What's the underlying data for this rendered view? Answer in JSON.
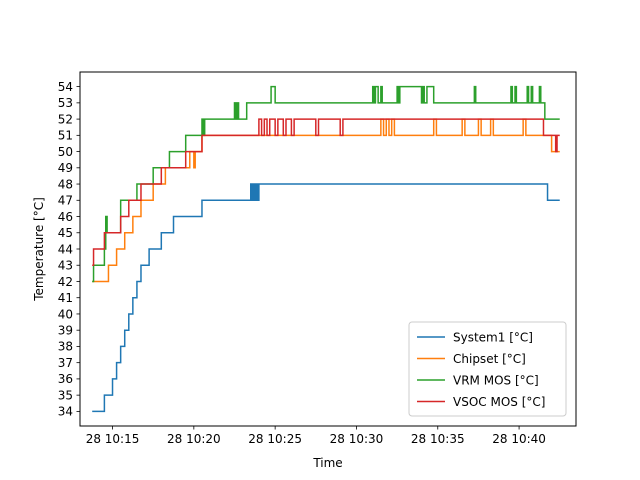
{
  "chart_data": {
    "type": "line",
    "title": "",
    "xlabel": "Time",
    "ylabel": "Temperature [°C]",
    "xlim": [
      "28 10:13:00",
      "28 10:43:30"
    ],
    "ylim": [
      33.1,
      54.9
    ],
    "grid": false,
    "legend": "lower-right",
    "x_ticks": [
      "28 10:15",
      "28 10:20",
      "28 10:25",
      "28 10:30",
      "28 10:35",
      "28 10:40"
    ],
    "x_tick_minutes": [
      15,
      20,
      25,
      30,
      35,
      40
    ],
    "y_ticks": [
      34,
      35,
      36,
      37,
      38,
      39,
      40,
      41,
      42,
      43,
      44,
      45,
      46,
      47,
      48,
      49,
      50,
      51,
      52,
      53,
      54
    ],
    "series": [
      {
        "name": "System1 [°C]",
        "color": "#1f77b4",
        "steps": [
          [
            "10:13:45",
            34
          ],
          [
            "10:14:30",
            35
          ],
          [
            "10:15:00",
            36
          ],
          [
            "10:15:15",
            37
          ],
          [
            "10:15:30",
            38
          ],
          [
            "10:15:45",
            39
          ],
          [
            "10:16:00",
            40
          ],
          [
            "10:16:15",
            41
          ],
          [
            "10:16:30",
            42
          ],
          [
            "10:16:45",
            43
          ],
          [
            "10:17:15",
            44
          ],
          [
            "10:18:00",
            45
          ],
          [
            "10:18:45",
            46
          ],
          [
            "10:20:30",
            47
          ],
          [
            "10:23:30",
            48
          ],
          [
            "10:23:35",
            47
          ],
          [
            "10:23:40",
            48
          ],
          [
            "10:23:45",
            47
          ],
          [
            "10:23:50",
            48
          ],
          [
            "10:23:55",
            47
          ],
          [
            "10:24:00",
            48
          ],
          [
            "10:41:45",
            47
          ],
          [
            "10:42:30",
            47
          ]
        ]
      },
      {
        "name": "Chipset [°C]",
        "color": "#ff7f0e",
        "steps": [
          [
            "10:13:45",
            42
          ],
          [
            "10:14:00",
            42
          ],
          [
            "10:14:45",
            43
          ],
          [
            "10:15:15",
            44
          ],
          [
            "10:15:45",
            45
          ],
          [
            "10:16:15",
            46
          ],
          [
            "10:16:45",
            47
          ],
          [
            "10:17:30",
            48
          ],
          [
            "10:18:15",
            49
          ],
          [
            "10:19:45",
            50
          ],
          [
            "10:20:00",
            49
          ],
          [
            "10:20:05",
            50
          ],
          [
            "10:20:30",
            51
          ],
          [
            "10:31:30",
            52
          ],
          [
            "10:31:40",
            51
          ],
          [
            "10:31:50",
            52
          ],
          [
            "10:32:00",
            51
          ],
          [
            "10:32:10",
            52
          ],
          [
            "10:32:20",
            51
          ],
          [
            "10:34:45",
            52
          ],
          [
            "10:34:55",
            51
          ],
          [
            "10:36:30",
            52
          ],
          [
            "10:36:40",
            51
          ],
          [
            "10:37:30",
            52
          ],
          [
            "10:37:40",
            51
          ],
          [
            "10:38:15",
            52
          ],
          [
            "10:38:25",
            51
          ],
          [
            "10:40:15",
            52
          ],
          [
            "10:40:25",
            51
          ],
          [
            "10:42:00",
            50
          ],
          [
            "10:42:30",
            50
          ]
        ]
      },
      {
        "name": "VRM MOS [°C]",
        "color": "#2ca02c",
        "steps": [
          [
            "10:13:45",
            42
          ],
          [
            "10:13:50",
            43
          ],
          [
            "10:14:30",
            44
          ],
          [
            "10:14:35",
            46
          ],
          [
            "10:14:40",
            45
          ],
          [
            "10:15:30",
            47
          ],
          [
            "10:16:30",
            48
          ],
          [
            "10:17:30",
            49
          ],
          [
            "10:18:30",
            50
          ],
          [
            "10:19:30",
            51
          ],
          [
            "10:20:30",
            52
          ],
          [
            "10:20:35",
            51
          ],
          [
            "10:20:40",
            52
          ],
          [
            "10:22:30",
            53
          ],
          [
            "10:22:35",
            52
          ],
          [
            "10:22:40",
            53
          ],
          [
            "10:22:45",
            52
          ],
          [
            "10:23:15",
            53
          ],
          [
            "10:24:45",
            54
          ],
          [
            "10:25:00",
            53
          ],
          [
            "10:31:00",
            54
          ],
          [
            "10:31:05",
            53
          ],
          [
            "10:31:10",
            54
          ],
          [
            "10:31:20",
            53
          ],
          [
            "10:31:30",
            54
          ],
          [
            "10:31:35",
            53
          ],
          [
            "10:32:30",
            54
          ],
          [
            "10:32:35",
            53
          ],
          [
            "10:32:40",
            54
          ],
          [
            "10:34:00",
            53
          ],
          [
            "10:34:05",
            54
          ],
          [
            "10:34:10",
            53
          ],
          [
            "10:34:20",
            54
          ],
          [
            "10:34:45",
            53
          ],
          [
            "10:37:15",
            54
          ],
          [
            "10:37:20",
            53
          ],
          [
            "10:39:30",
            54
          ],
          [
            "10:39:35",
            53
          ],
          [
            "10:39:45",
            54
          ],
          [
            "10:39:50",
            53
          ],
          [
            "10:40:30",
            54
          ],
          [
            "10:40:35",
            53
          ],
          [
            "10:40:45",
            54
          ],
          [
            "10:40:50",
            53
          ],
          [
            "10:41:15",
            54
          ],
          [
            "10:41:20",
            53
          ],
          [
            "10:41:35",
            52
          ],
          [
            "10:42:30",
            52
          ]
        ]
      },
      {
        "name": "VSOC MOS [°C]",
        "color": "#d62728",
        "steps": [
          [
            "10:13:45",
            43
          ],
          [
            "10:13:50",
            44
          ],
          [
            "10:14:30",
            45
          ],
          [
            "10:15:30",
            46
          ],
          [
            "10:16:00",
            47
          ],
          [
            "10:16:45",
            48
          ],
          [
            "10:18:00",
            49
          ],
          [
            "10:19:30",
            50
          ],
          [
            "10:20:30",
            51
          ],
          [
            "10:24:00",
            52
          ],
          [
            "10:24:10",
            51
          ],
          [
            "10:24:20",
            52
          ],
          [
            "10:24:30",
            51
          ],
          [
            "10:24:40",
            52
          ],
          [
            "10:25:00",
            51
          ],
          [
            "10:25:10",
            52
          ],
          [
            "10:25:30",
            51
          ],
          [
            "10:25:40",
            52
          ],
          [
            "10:26:00",
            51
          ],
          [
            "10:26:10",
            52
          ],
          [
            "10:27:30",
            51
          ],
          [
            "10:27:40",
            52
          ],
          [
            "10:29:00",
            51
          ],
          [
            "10:29:10",
            52
          ],
          [
            "10:41:30",
            51
          ],
          [
            "10:42:15",
            50
          ],
          [
            "10:42:20",
            51
          ],
          [
            "10:42:30",
            51
          ]
        ]
      }
    ]
  }
}
